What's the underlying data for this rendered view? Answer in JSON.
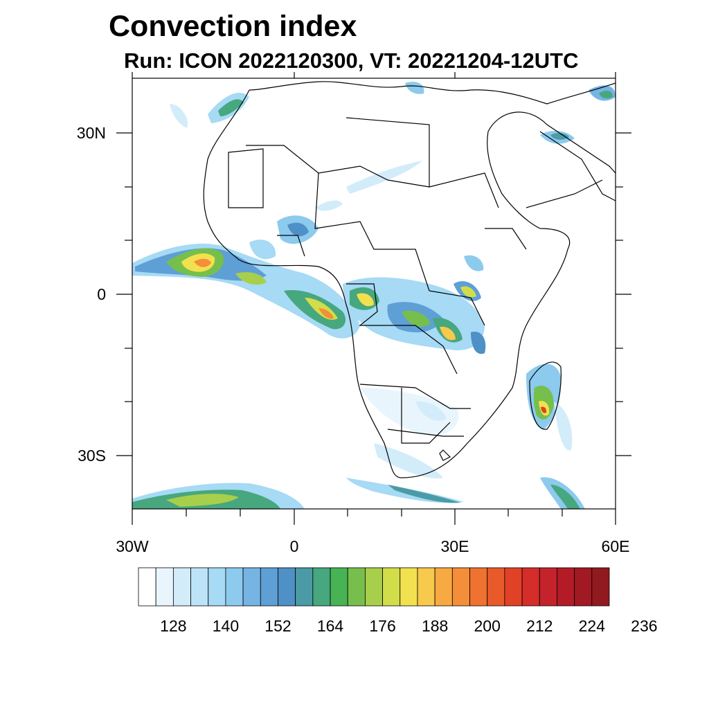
{
  "title": "Convection index",
  "subtitle": "Run: ICON 2022120300,  VT: 20221204-12UTC",
  "map": {
    "lat_labels": [
      "30N",
      "0",
      "30S"
    ],
    "lon_labels": [
      "30W",
      "0",
      "30E",
      "60E"
    ]
  },
  "colorbar": {
    "labels": [
      "128",
      "140",
      "152",
      "164",
      "176",
      "188",
      "200",
      "212",
      "224",
      "236"
    ],
    "colors": [
      "#ffffff",
      "#e9f5fc",
      "#d2ecfa",
      "#bde3f8",
      "#a6daf5",
      "#8ccaee",
      "#76b5e3",
      "#5e9fd6",
      "#4f90c6",
      "#4a9ba6",
      "#47a77e",
      "#47b354",
      "#76bf4c",
      "#a8cf4b",
      "#d2dd4a",
      "#f2e14f",
      "#f7c94c",
      "#f7a942",
      "#f48e38",
      "#ef7230",
      "#e95a2a",
      "#e14127",
      "#d42d2a",
      "#c4232b",
      "#b31c27",
      "#a11922",
      "#901a1e"
    ]
  }
}
